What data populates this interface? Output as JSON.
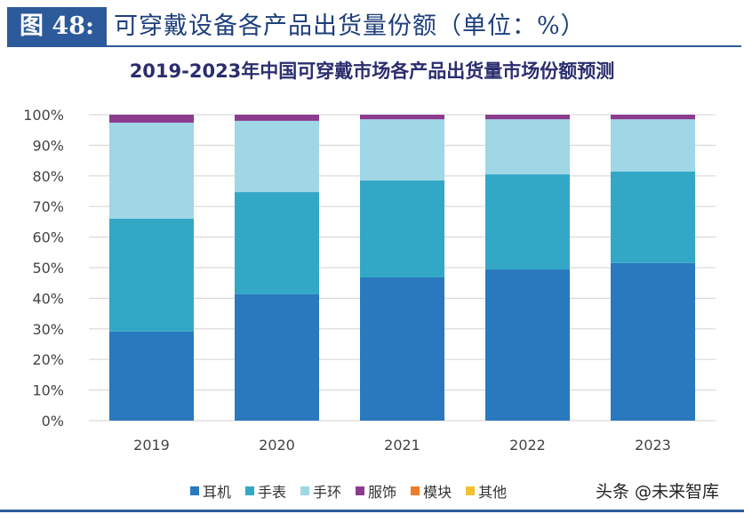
{
  "figure": {
    "label": "图 48:",
    "title": "可穿戴设备各产品出货量份额（单位：%）"
  },
  "watermark": "头条 @未来智库",
  "chart_data": {
    "type": "bar",
    "stacked": true,
    "title": "2019-2023年中国可穿戴市场各产品出货量市场份额预测",
    "categories": [
      "2019",
      "2020",
      "2021",
      "2022",
      "2023"
    ],
    "ylim": [
      0,
      100
    ],
    "yticks": [
      "0%",
      "10%",
      "20%",
      "30%",
      "40%",
      "50%",
      "60%",
      "70%",
      "80%",
      "90%",
      "100%"
    ],
    "grid": true,
    "legend_position": "bottom",
    "series": [
      {
        "name": "耳机",
        "color": "#2a78bd",
        "values": [
          29.1,
          41.3,
          46.8,
          49.4,
          51.5
        ]
      },
      {
        "name": "手表",
        "color": "#33a8c6",
        "values": [
          36.9,
          33.4,
          31.7,
          31.1,
          29.9
        ]
      },
      {
        "name": "手环",
        "color": "#9fd7e6",
        "values": [
          31.4,
          23.3,
          20.0,
          18.0,
          17.1
        ]
      },
      {
        "name": "服饰",
        "color": "#8c3b8e",
        "values": [
          2.6,
          2.0,
          1.5,
          1.5,
          1.5
        ]
      },
      {
        "name": "模块",
        "color": "#ec7d2a",
        "values": [
          0,
          0,
          0,
          0,
          0
        ]
      },
      {
        "name": "其他",
        "color": "#f2c230",
        "values": [
          0,
          0,
          0,
          0,
          0
        ]
      }
    ]
  }
}
